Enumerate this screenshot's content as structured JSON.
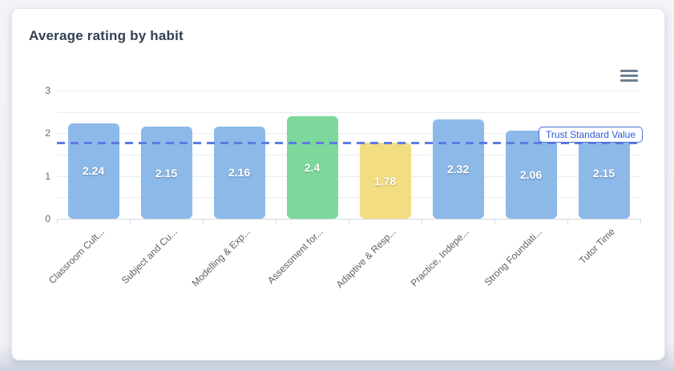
{
  "card": {
    "title": "Average rating by habit"
  },
  "menu": {
    "icon": "hamburger-icon"
  },
  "chart_data": {
    "type": "bar",
    "title": "Average rating by habit",
    "categories": [
      "Classroom Cult...",
      "Subject and Cu...",
      "Modelling & Exp...",
      "Assessment for...",
      "Adaptive & Resp...",
      "Practice, Indepe...",
      "Strong Foundati...",
      "Tutor Time"
    ],
    "values": [
      2.24,
      2.15,
      2.16,
      2.4,
      1.78,
      2.32,
      2.06,
      2.15
    ],
    "value_labels": [
      "2.24",
      "2.15",
      "2.16",
      "2.4",
      "1.78",
      "2.32",
      "2.06",
      "2.15"
    ],
    "bar_colors": [
      "#8db9e9",
      "#8db9e9",
      "#8db9e9",
      "#7dd89c",
      "#f3dd82",
      "#8db9e9",
      "#8db9e9",
      "#8db9e9"
    ],
    "xlabel": "",
    "ylabel": "",
    "ylim": [
      0,
      3
    ],
    "y_ticks": [
      0,
      1,
      2,
      3
    ],
    "grid_interval": 0.5,
    "grid": true,
    "legend": false,
    "x_label_rotation": 45,
    "reference_line": {
      "label": "Trust Standard Value",
      "value": 1.8,
      "color": "#5b7ce2",
      "style": "dashed"
    }
  },
  "colors": {
    "bar_default": "#8db9e9",
    "bar_green": "#7dd89c",
    "bar_yellow": "#f3dd82",
    "reference_line": "#5b7ce2",
    "reference_label_text": "#2b5bd7",
    "title_text": "#333f54",
    "axis_text": "#5f646b"
  }
}
